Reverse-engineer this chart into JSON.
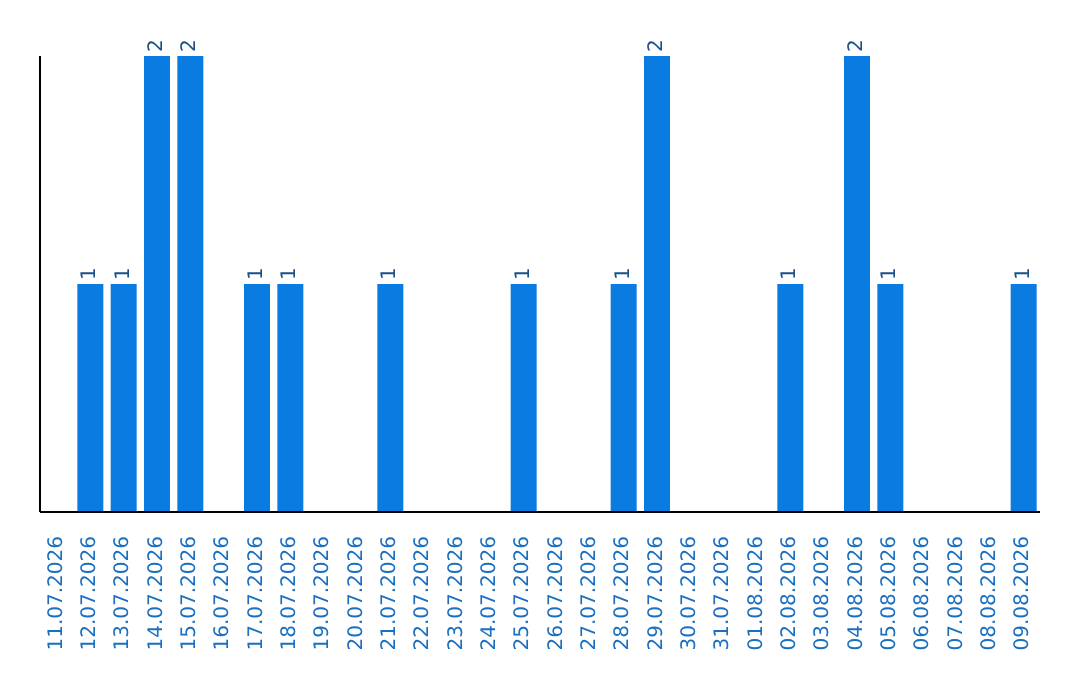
{
  "chart_data": {
    "type": "bar",
    "categories": [
      "11.07.2026",
      "12.07.2026",
      "13.07.2026",
      "14.07.2026",
      "15.07.2026",
      "16.07.2026",
      "17.07.2026",
      "18.07.2026",
      "19.07.2026",
      "20.07.2026",
      "21.07.2026",
      "22.07.2026",
      "23.07.2026",
      "24.07.2026",
      "25.07.2026",
      "26.07.2026",
      "27.07.2026",
      "28.07.2026",
      "29.07.2026",
      "30.07.2026",
      "31.07.2026",
      "01.08.2026",
      "02.08.2026",
      "03.08.2026",
      "04.08.2026",
      "05.08.2026",
      "06.08.2026",
      "07.08.2026",
      "08.08.2026",
      "09.08.2026"
    ],
    "values": [
      0,
      1,
      1,
      2,
      2,
      0,
      1,
      1,
      0,
      0,
      1,
      0,
      0,
      0,
      1,
      0,
      0,
      1,
      2,
      0,
      0,
      0,
      1,
      0,
      2,
      1,
      0,
      0,
      0,
      1
    ],
    "value_labels": [
      null,
      "1",
      "1",
      "2",
      "2",
      null,
      "1",
      "1",
      null,
      null,
      "1",
      null,
      null,
      null,
      "1",
      null,
      null,
      "1",
      "2",
      null,
      null,
      null,
      "1",
      null,
      "2",
      "1",
      null,
      null,
      null,
      "1"
    ],
    "color": "#0a7be0",
    "ylim": [
      0,
      2
    ],
    "tick_labels": "x",
    "grid": false,
    "legend": false
  }
}
